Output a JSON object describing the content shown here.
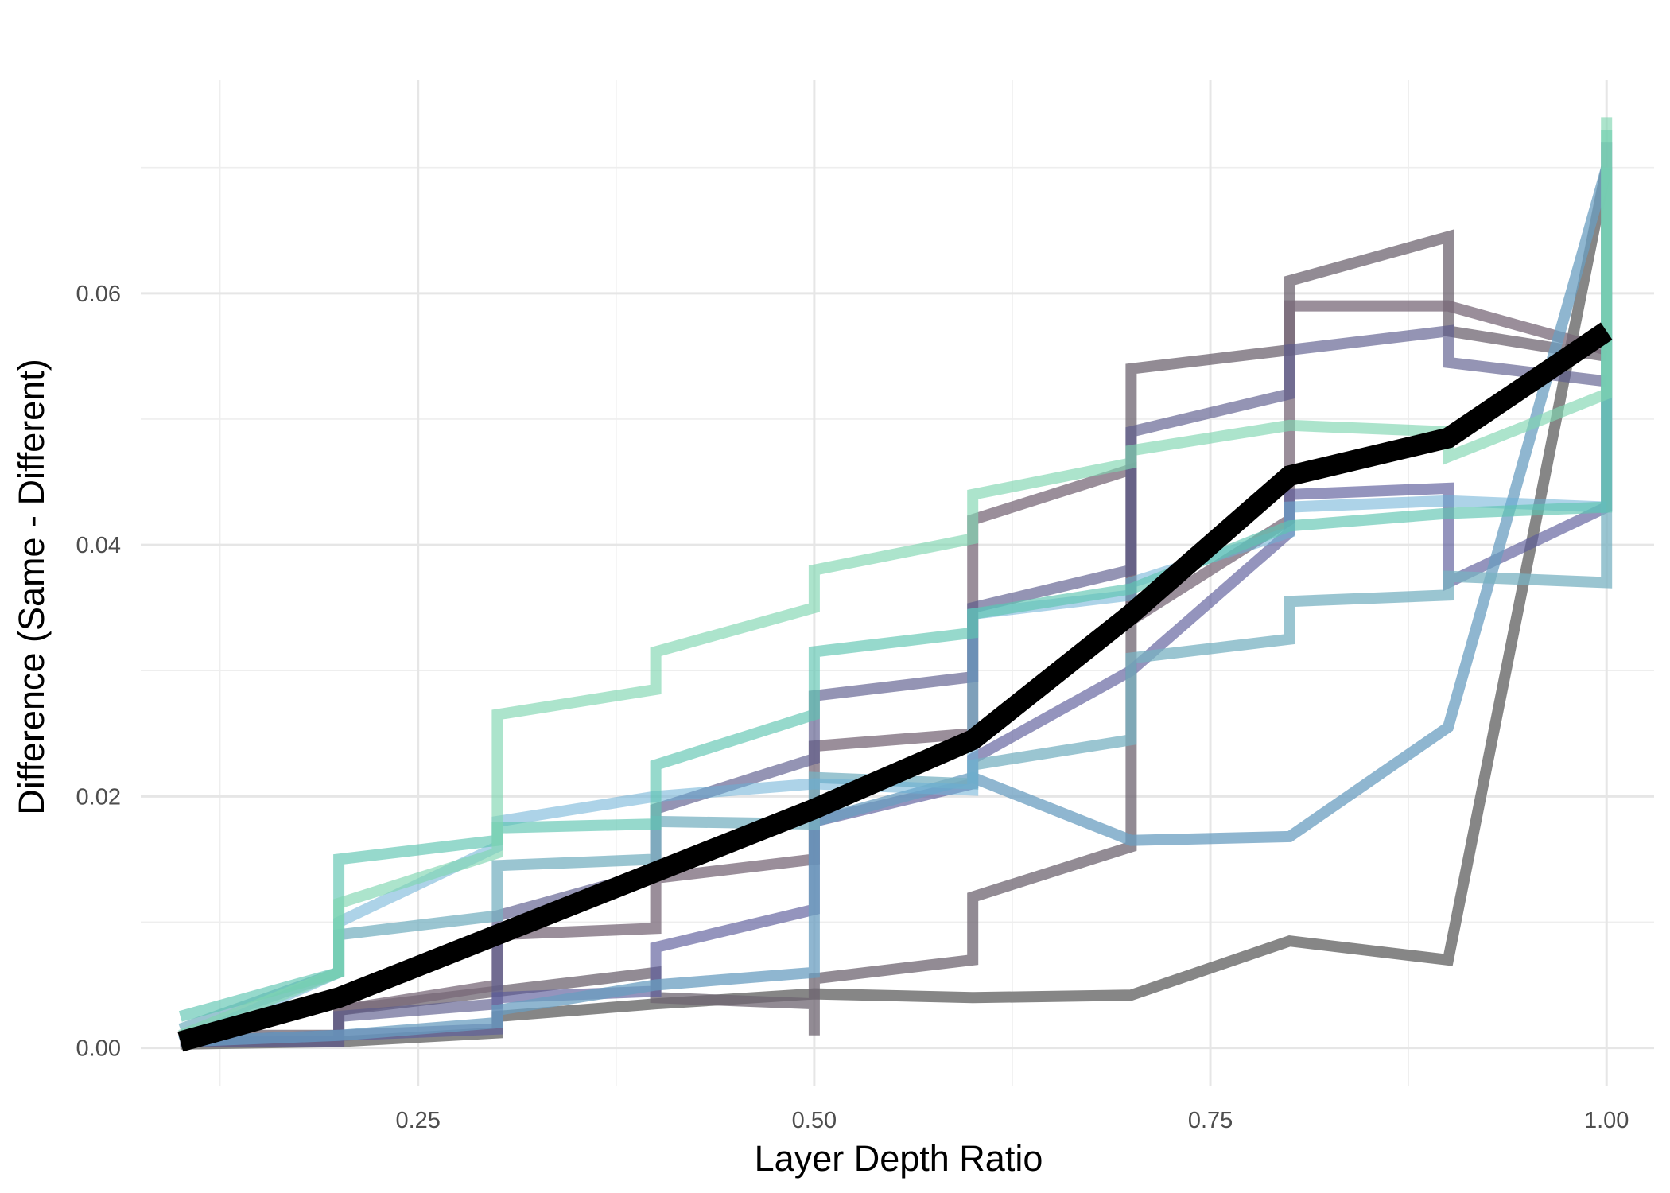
{
  "chart_data": {
    "type": "line",
    "xlabel": "Layer Depth Ratio",
    "ylabel": "Difference (Same - Different)",
    "xlim": [
      0.075,
      1.03
    ],
    "ylim": [
      -0.003,
      0.077
    ],
    "x_ticks": [
      {
        "value": 0.25,
        "label": "0.25"
      },
      {
        "value": 0.5,
        "label": "0.50"
      },
      {
        "value": 0.75,
        "label": "0.75"
      },
      {
        "value": 1.0,
        "label": "1.00"
      }
    ],
    "x_minor": [
      0.125,
      0.375,
      0.625,
      0.875
    ],
    "y_ticks": [
      {
        "value": 0.0,
        "label": "0.00"
      },
      {
        "value": 0.02,
        "label": "0.02"
      },
      {
        "value": 0.04,
        "label": "0.04"
      },
      {
        "value": 0.06,
        "label": "0.06"
      }
    ],
    "y_minor": [
      0.01,
      0.03,
      0.05,
      0.07
    ],
    "grid": true,
    "legend": "none",
    "series": [
      {
        "color": "#808080",
        "opacity": 0.95,
        "width": 14,
        "points": [
          [
            0.1,
            0.0003
          ],
          [
            0.2,
            0.0005
          ],
          [
            0.3,
            0.0012
          ],
          [
            0.3,
            0.0025
          ],
          [
            0.4,
            0.0035
          ],
          [
            0.5,
            0.0043
          ],
          [
            0.6,
            0.004
          ],
          [
            0.7,
            0.0042
          ],
          [
            0.8,
            0.0085
          ],
          [
            0.9,
            0.007
          ],
          [
            1.0,
            0.07
          ]
        ]
      },
      {
        "color": "#6e6470",
        "opacity": 0.75,
        "width": 14,
        "points": [
          [
            0.1,
            0.001
          ],
          [
            0.2,
            0.001
          ],
          [
            0.2,
            0.003
          ],
          [
            0.4,
            0.006
          ],
          [
            0.4,
            0.004
          ],
          [
            0.5,
            0.0035
          ],
          [
            0.5,
            0.001
          ],
          [
            0.5,
            0.0055
          ],
          [
            0.6,
            0.007
          ],
          [
            0.6,
            0.012
          ],
          [
            0.7,
            0.016
          ],
          [
            0.7,
            0.054
          ],
          [
            0.8,
            0.0555
          ],
          [
            0.8,
            0.061
          ],
          [
            0.9,
            0.0645
          ],
          [
            0.9,
            0.057
          ],
          [
            1.0,
            0.055
          ]
        ]
      },
      {
        "color": "#786878",
        "opacity": 0.75,
        "width": 14,
        "points": [
          [
            0.1,
            0.0005
          ],
          [
            0.2,
            0.0005
          ],
          [
            0.2,
            0.003
          ],
          [
            0.3,
            0.005
          ],
          [
            0.3,
            0.009
          ],
          [
            0.4,
            0.0095
          ],
          [
            0.4,
            0.0135
          ],
          [
            0.5,
            0.015
          ],
          [
            0.5,
            0.024
          ],
          [
            0.6,
            0.025
          ],
          [
            0.6,
            0.042
          ],
          [
            0.7,
            0.046
          ],
          [
            0.7,
            0.034
          ],
          [
            0.8,
            0.042
          ],
          [
            0.8,
            0.059
          ],
          [
            0.9,
            0.059
          ],
          [
            1.0,
            0.0555
          ]
        ]
      },
      {
        "color": "#5a5a8c",
        "opacity": 0.65,
        "width": 14,
        "points": [
          [
            0.1,
            0.0005
          ],
          [
            0.2,
            0.0005
          ],
          [
            0.2,
            0.0025
          ],
          [
            0.3,
            0.0035
          ],
          [
            0.3,
            0.0105
          ],
          [
            0.4,
            0.014
          ],
          [
            0.4,
            0.019
          ],
          [
            0.5,
            0.023
          ],
          [
            0.5,
            0.028
          ],
          [
            0.6,
            0.0295
          ],
          [
            0.6,
            0.035
          ],
          [
            0.7,
            0.038
          ],
          [
            0.7,
            0.049
          ],
          [
            0.8,
            0.052
          ],
          [
            0.8,
            0.0555
          ],
          [
            0.9,
            0.057
          ],
          [
            0.9,
            0.0545
          ],
          [
            1.0,
            0.053
          ]
        ]
      },
      {
        "color": "#5a5a9a",
        "opacity": 0.65,
        "width": 14,
        "points": [
          [
            0.1,
            0.0005
          ],
          [
            0.3,
            0.0015
          ],
          [
            0.3,
            0.004
          ],
          [
            0.4,
            0.0045
          ],
          [
            0.4,
            0.008
          ],
          [
            0.5,
            0.011
          ],
          [
            0.5,
            0.018
          ],
          [
            0.6,
            0.021
          ],
          [
            0.6,
            0.023
          ],
          [
            0.7,
            0.03
          ],
          [
            0.8,
            0.041
          ],
          [
            0.8,
            0.044
          ],
          [
            0.9,
            0.0445
          ],
          [
            0.9,
            0.037
          ],
          [
            1.0,
            0.043
          ],
          [
            1.0,
            0.072
          ]
        ]
      },
      {
        "color": "#6a9ec0",
        "opacity": 0.75,
        "width": 14,
        "points": [
          [
            0.1,
            0.0005
          ],
          [
            0.2,
            0.001
          ],
          [
            0.3,
            0.002
          ],
          [
            0.3,
            0.003
          ],
          [
            0.4,
            0.005
          ],
          [
            0.5,
            0.006
          ],
          [
            0.5,
            0.018
          ],
          [
            0.6,
            0.0215
          ],
          [
            0.7,
            0.0165
          ],
          [
            0.8,
            0.0168
          ],
          [
            0.9,
            0.0255
          ],
          [
            1.0,
            0.07
          ]
        ]
      },
      {
        "color": "#78b2c2",
        "opacity": 0.75,
        "width": 14,
        "points": [
          [
            0.1,
            0.0015
          ],
          [
            0.2,
            0.006
          ],
          [
            0.2,
            0.009
          ],
          [
            0.3,
            0.0105
          ],
          [
            0.3,
            0.0145
          ],
          [
            0.4,
            0.015
          ],
          [
            0.4,
            0.018
          ],
          [
            0.5,
            0.0178
          ],
          [
            0.5,
            0.0215
          ],
          [
            0.6,
            0.021
          ],
          [
            0.6,
            0.0225
          ],
          [
            0.7,
            0.0245
          ],
          [
            0.7,
            0.031
          ],
          [
            0.8,
            0.0325
          ],
          [
            0.8,
            0.0355
          ],
          [
            0.9,
            0.036
          ],
          [
            0.9,
            0.0375
          ],
          [
            1.0,
            0.037
          ],
          [
            1.0,
            0.07
          ]
        ]
      },
      {
        "color": "#6aaed6",
        "opacity": 0.55,
        "width": 14,
        "points": [
          [
            0.1,
            0.0005
          ],
          [
            0.2,
            0.006
          ],
          [
            0.2,
            0.01
          ],
          [
            0.3,
            0.016
          ],
          [
            0.3,
            0.018
          ],
          [
            0.4,
            0.02
          ],
          [
            0.5,
            0.021
          ],
          [
            0.6,
            0.0205
          ],
          [
            0.6,
            0.0345
          ],
          [
            0.7,
            0.036
          ],
          [
            0.7,
            0.037
          ],
          [
            0.8,
            0.041
          ],
          [
            0.8,
            0.043
          ],
          [
            0.9,
            0.0435
          ],
          [
            1.0,
            0.043
          ]
        ]
      },
      {
        "color": "#5ec4b0",
        "opacity": 0.65,
        "width": 14,
        "points": [
          [
            0.1,
            0.0025
          ],
          [
            0.2,
            0.006
          ],
          [
            0.2,
            0.015
          ],
          [
            0.3,
            0.0165
          ],
          [
            0.3,
            0.0175
          ],
          [
            0.4,
            0.0178
          ],
          [
            0.4,
            0.0225
          ],
          [
            0.5,
            0.0265
          ],
          [
            0.5,
            0.0315
          ],
          [
            0.6,
            0.033
          ],
          [
            0.6,
            0.0345
          ],
          [
            0.7,
            0.0365
          ],
          [
            0.8,
            0.0415
          ],
          [
            0.9,
            0.0425
          ],
          [
            1.0,
            0.043
          ],
          [
            1.0,
            0.073
          ]
        ]
      },
      {
        "color": "#7fd6b0",
        "opacity": 0.65,
        "width": 14,
        "points": [
          [
            0.1,
            0.001
          ],
          [
            0.2,
            0.006
          ],
          [
            0.2,
            0.0115
          ],
          [
            0.3,
            0.0155
          ],
          [
            0.3,
            0.0265
          ],
          [
            0.4,
            0.0285
          ],
          [
            0.4,
            0.0315
          ],
          [
            0.5,
            0.035
          ],
          [
            0.5,
            0.038
          ],
          [
            0.6,
            0.0405
          ],
          [
            0.6,
            0.044
          ],
          [
            0.7,
            0.0465
          ],
          [
            0.7,
            0.0475
          ],
          [
            0.8,
            0.0495
          ],
          [
            0.9,
            0.049
          ],
          [
            0.9,
            0.047
          ],
          [
            1.0,
            0.052
          ],
          [
            1.0,
            0.074
          ]
        ]
      },
      {
        "color": "#000000",
        "opacity": 1.0,
        "width": 26,
        "points": [
          [
            0.1,
            0.0005
          ],
          [
            0.2,
            0.004
          ],
          [
            0.3,
            0.009
          ],
          [
            0.4,
            0.014
          ],
          [
            0.5,
            0.019
          ],
          [
            0.6,
            0.0245
          ],
          [
            0.7,
            0.0345
          ],
          [
            0.8,
            0.0455
          ],
          [
            0.9,
            0.0485
          ],
          [
            1.0,
            0.057
          ]
        ]
      }
    ]
  }
}
